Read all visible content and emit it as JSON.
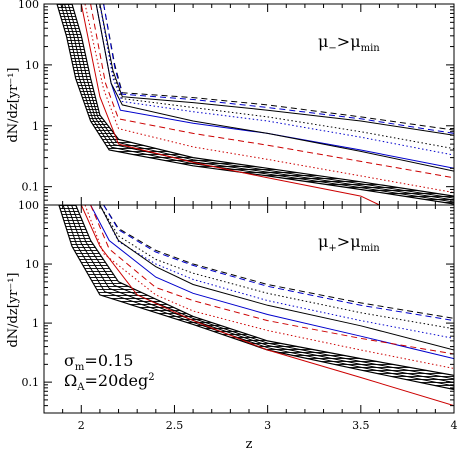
{
  "chart_data": [
    {
      "type": "line",
      "panel": "top",
      "ylabel": "dN/dz[yr⁻¹]",
      "xlabel": "",
      "yscale": "log",
      "xlim": [
        1.8,
        4.0
      ],
      "ylim": [
        0.05,
        100
      ],
      "x_ticks": [
        2,
        2.5,
        3,
        3.5,
        4
      ],
      "x_tick_labels": [
        "2",
        "2.5",
        "3",
        "3.5",
        "4"
      ],
      "y_ticks": [
        0.1,
        1,
        10,
        100
      ],
      "y_tick_labels": [
        "0.1",
        "1",
        "10",
        "100"
      ],
      "label": {
        "main": "μ",
        "sub": "−",
        "rel": ">μ",
        "sub2": "min"
      },
      "series": [
        {
          "color": "#000000",
          "dash": "",
          "points": [
            [
              2.1,
              100
            ],
            [
              2.17,
              8
            ],
            [
              2.22,
              3.0
            ],
            [
              2.6,
              2.4
            ],
            [
              3,
              1.8
            ],
            [
              3.5,
              1.2
            ],
            [
              4,
              0.7
            ]
          ]
        },
        {
          "color": "#000000",
          "dash": "6,4",
          "points": [
            [
              2.12,
              100
            ],
            [
              2.18,
              10
            ],
            [
              2.22,
              3.5
            ],
            [
              2.6,
              2.9
            ],
            [
              3,
              2.2
            ],
            [
              3.5,
              1.4
            ],
            [
              4,
              0.85
            ]
          ]
        },
        {
          "color": "#0000cc",
          "dash": "6,4",
          "points": [
            [
              2.12,
              100
            ],
            [
              2.18,
              9
            ],
            [
              2.22,
              3.3
            ],
            [
              2.6,
              2.7
            ],
            [
              3,
              2.0
            ],
            [
              3.5,
              1.3
            ],
            [
              4,
              0.75
            ]
          ]
        },
        {
          "color": "#000000",
          "dash": "1.5,2.5",
          "points": [
            [
              2.1,
              100
            ],
            [
              2.17,
              7
            ],
            [
              2.22,
              2.8
            ],
            [
              2.6,
              2.0
            ],
            [
              3,
              1.4
            ],
            [
              3.5,
              0.8
            ],
            [
              4,
              0.42
            ]
          ]
        },
        {
          "color": "#0000cc",
          "dash": "1.5,2.5",
          "points": [
            [
              2.1,
              100
            ],
            [
              2.17,
              6
            ],
            [
              2.22,
              2.5
            ],
            [
              2.6,
              1.7
            ],
            [
              3,
              1.2
            ],
            [
              3.5,
              0.65
            ],
            [
              4,
              0.33
            ]
          ]
        },
        {
          "color": "#0000cc",
          "dash": "",
          "points": [
            [
              2.08,
              100
            ],
            [
              2.16,
              5
            ],
            [
              2.21,
              1.8
            ],
            [
              2.6,
              1.1
            ],
            [
              3,
              0.75
            ],
            [
              3.5,
              0.4
            ],
            [
              4,
              0.2
            ]
          ]
        },
        {
          "color": "#000000",
          "dash": "",
          "points": [
            [
              2.08,
              100
            ],
            [
              2.16,
              5
            ],
            [
              2.22,
              2.2
            ],
            [
              2.6,
              1.2
            ],
            [
              3,
              0.75
            ],
            [
              3.5,
              0.38
            ],
            [
              4,
              0.18
            ]
          ]
        },
        {
          "color": "#cc0000",
          "dash": "6,4",
          "points": [
            [
              2.05,
              100
            ],
            [
              2.13,
              5
            ],
            [
              2.2,
              1.3
            ],
            [
              2.6,
              0.75
            ],
            [
              3,
              0.48
            ],
            [
              3.5,
              0.26
            ],
            [
              4,
              0.14
            ]
          ]
        },
        {
          "color": "#cc0000",
          "dash": "1.5,2.5",
          "points": [
            [
              2.02,
              100
            ],
            [
              2.12,
              4
            ],
            [
              2.2,
              0.9
            ],
            [
              2.6,
              0.45
            ],
            [
              3,
              0.28
            ],
            [
              3.5,
              0.15
            ],
            [
              4,
              0.08
            ]
          ]
        },
        {
          "color": "#cc0000",
          "dash": "",
          "points": [
            [
              2.0,
              100
            ],
            [
              2.1,
              3
            ],
            [
              2.2,
              0.5
            ],
            [
              2.6,
              0.25
            ],
            [
              3,
              0.14
            ],
            [
              3.5,
              0.07
            ],
            [
              3.6,
              0.05
            ]
          ]
        }
      ],
      "band": {
        "upper": [
          [
            1.95,
            100
          ],
          [
            2.0,
            30
          ],
          [
            2.05,
            6
          ],
          [
            2.1,
            1.5
          ],
          [
            2.2,
            0.6
          ],
          [
            2.6,
            0.3
          ],
          [
            3,
            0.2
          ],
          [
            3.5,
            0.12
          ],
          [
            4,
            0.07
          ]
        ],
        "lower": [
          [
            1.87,
            100
          ],
          [
            1.92,
            30
          ],
          [
            1.97,
            6
          ],
          [
            2.05,
            1.2
          ],
          [
            2.15,
            0.4
          ],
          [
            2.6,
            0.22
          ],
          [
            3,
            0.15
          ],
          [
            3.5,
            0.09
          ],
          [
            4,
            0.052
          ]
        ]
      }
    },
    {
      "type": "line",
      "panel": "bottom",
      "ylabel": "dN/dz[yr⁻¹]",
      "xlabel": "z",
      "yscale": "log",
      "xlim": [
        1.8,
        4.0
      ],
      "ylim": [
        0.03,
        100
      ],
      "x_ticks": [
        2,
        2.5,
        3,
        3.5,
        4
      ],
      "x_tick_labels": [
        "2",
        "2.5",
        "3",
        "3.5",
        "4"
      ],
      "y_ticks": [
        0.1,
        1,
        10,
        100
      ],
      "y_tick_labels": [
        "0.1",
        "1",
        "10",
        "100"
      ],
      "label": {
        "main": "μ",
        "sub": "+",
        "rel": ">μ",
        "sub2": "min"
      },
      "annotation": {
        "sigma": "σ",
        "sigma_sub": "m",
        "sigma_val": "=0.15",
        "omega": "Ω",
        "omega_sub": "A",
        "omega_val": "=20deg",
        "omega_sup": "2"
      },
      "series": [
        {
          "color": "#000000",
          "dash": "6,4",
          "points": [
            [
              2.12,
              100
            ],
            [
              2.2,
              40
            ],
            [
              2.4,
              17
            ],
            [
              2.6,
              10
            ],
            [
              3,
              4.5
            ],
            [
              3.5,
              2.2
            ],
            [
              4,
              1.2
            ]
          ]
        },
        {
          "color": "#0000cc",
          "dash": "6,4",
          "points": [
            [
              2.12,
              100
            ],
            [
              2.2,
              38
            ],
            [
              2.4,
              16
            ],
            [
              2.6,
              9.5
            ],
            [
              3,
              4.2
            ],
            [
              3.5,
              2.0
            ],
            [
              4,
              1.1
            ]
          ]
        },
        {
          "color": "#000000",
          "dash": "1.5,2.5",
          "points": [
            [
              2.1,
              100
            ],
            [
              2.2,
              30
            ],
            [
              2.4,
              12
            ],
            [
              2.6,
              7
            ],
            [
              3,
              3.2
            ],
            [
              3.5,
              1.5
            ],
            [
              4,
              0.8
            ]
          ]
        },
        {
          "color": "#0000cc",
          "dash": "1.5,2.5",
          "points": [
            [
              2.1,
              100
            ],
            [
              2.2,
              24
            ],
            [
              2.4,
              10
            ],
            [
              2.6,
              5.5
            ],
            [
              3,
              2.4
            ],
            [
              3.5,
              1.1
            ],
            [
              4,
              0.55
            ]
          ]
        },
        {
          "color": "#000000",
          "dash": "",
          "points": [
            [
              2.1,
              100
            ],
            [
              2.2,
              25
            ],
            [
              2.4,
              9
            ],
            [
              2.6,
              4.5
            ],
            [
              3,
              2.0
            ],
            [
              3.5,
              0.9
            ],
            [
              4,
              0.35
            ]
          ]
        },
        {
          "color": "#0000cc",
          "dash": "",
          "points": [
            [
              2.05,
              100
            ],
            [
              2.15,
              25
            ],
            [
              2.4,
              6
            ],
            [
              2.6,
              3.2
            ],
            [
              3,
              1.4
            ],
            [
              3.5,
              0.6
            ],
            [
              4,
              0.25
            ]
          ]
        },
        {
          "color": "#cc0000",
          "dash": "6,4",
          "points": [
            [
              2.05,
              100
            ],
            [
              2.15,
              18
            ],
            [
              2.4,
              4
            ],
            [
              2.6,
              2.4
            ],
            [
              3,
              1.1
            ],
            [
              3.5,
              0.55
            ],
            [
              4,
              0.3
            ]
          ]
        },
        {
          "color": "#cc0000",
          "dash": "1.5,2.5",
          "points": [
            [
              2.02,
              100
            ],
            [
              2.12,
              15
            ],
            [
              2.4,
              3
            ],
            [
              2.6,
              1.6
            ],
            [
              3,
              0.75
            ],
            [
              3.5,
              0.35
            ],
            [
              4,
              0.17
            ]
          ]
        },
        {
          "color": "#cc0000",
          "dash": "",
          "points": [
            [
              2.0,
              100
            ],
            [
              2.1,
              20
            ],
            [
              2.3,
              3
            ],
            [
              2.6,
              1.1
            ],
            [
              3,
              0.35
            ],
            [
              3.5,
              0.12
            ],
            [
              4,
              0.04
            ]
          ]
        }
      ],
      "band": {
        "upper": [
          [
            1.97,
            100
          ],
          [
            2.05,
            25
          ],
          [
            2.2,
            5
          ],
          [
            2.6,
            1.3
          ],
          [
            3,
            0.5
          ],
          [
            3.5,
            0.25
          ],
          [
            4,
            0.13
          ]
        ],
        "lower": [
          [
            1.88,
            100
          ],
          [
            1.95,
            20
          ],
          [
            2.1,
            3
          ],
          [
            2.6,
            0.95
          ],
          [
            3,
            0.35
          ],
          [
            3.5,
            0.16
          ],
          [
            4,
            0.075
          ]
        ]
      }
    }
  ]
}
